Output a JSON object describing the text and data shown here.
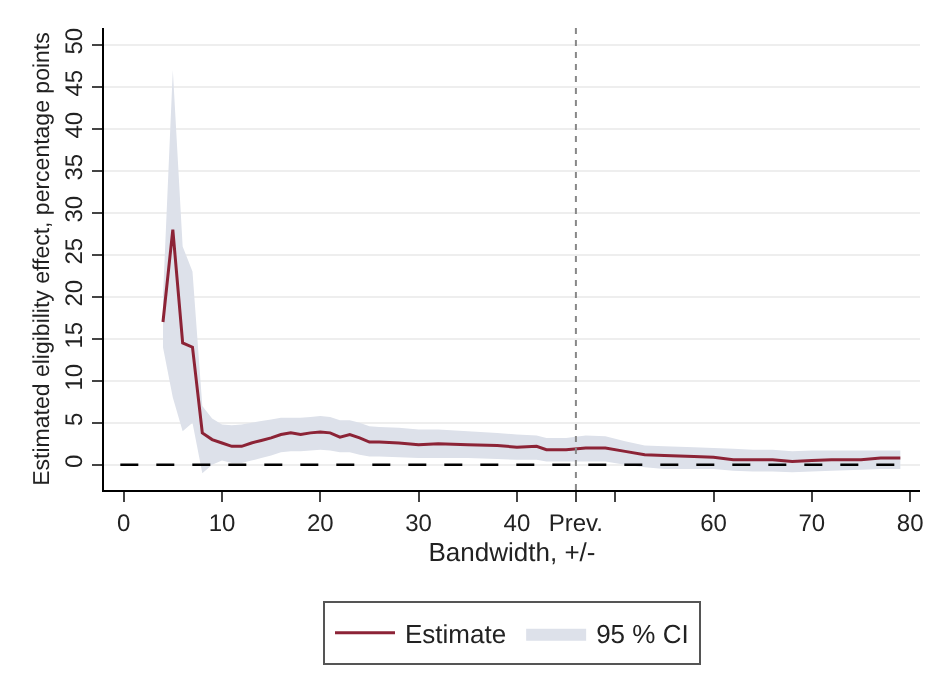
{
  "chart_data": {
    "type": "line",
    "xlabel": "Bandwidth, +/-",
    "ylabel": "Estimated eligibility effect, percentage points",
    "x": [
      4,
      5,
      6,
      7,
      8,
      9,
      10,
      11,
      12,
      13,
      14,
      15,
      16,
      17,
      18,
      19,
      20,
      21,
      22,
      23,
      24,
      25,
      26,
      28,
      30,
      32,
      35,
      38,
      40,
      42,
      43,
      45,
      47,
      49,
      51,
      53,
      55,
      58,
      60,
      62,
      64,
      66,
      68,
      70,
      72,
      75,
      77,
      79
    ],
    "series": [
      {
        "name": "Estimate",
        "color": "#8c2336",
        "values": [
          17,
          28,
          14.5,
          14,
          3.8,
          3,
          2.6,
          2.2,
          2.2,
          2.6,
          2.9,
          3.2,
          3.6,
          3.8,
          3.6,
          3.8,
          3.9,
          3.8,
          3.3,
          3.6,
          3.2,
          2.7,
          2.7,
          2.6,
          2.4,
          2.5,
          2.4,
          2.3,
          2.1,
          2.2,
          1.8,
          1.8,
          2.0,
          2.0,
          1.6,
          1.2,
          1.1,
          1.0,
          0.9,
          0.6,
          0.6,
          0.6,
          0.4,
          0.5,
          0.6,
          0.6,
          0.8,
          0.8
        ]
      },
      {
        "name": "95 % CI",
        "type": "area",
        "color": "#dde1ea",
        "values": [
          null,
          null,
          null,
          null,
          null,
          null,
          null,
          null,
          null,
          null,
          null,
          null,
          null,
          null,
          null,
          null,
          null,
          null,
          null,
          null,
          null,
          null,
          null,
          null,
          null,
          null,
          null,
          null,
          null,
          null,
          null,
          null,
          null,
          null,
          null,
          null,
          null,
          null,
          null,
          null,
          null,
          null,
          null,
          null,
          null,
          null,
          null,
          null
        ],
        "upper": [
          20,
          47,
          26,
          23,
          7,
          5.5,
          4.8,
          4.7,
          4.8,
          5,
          5.2,
          5.4,
          5.6,
          5.6,
          5.6,
          5.7,
          5.8,
          5.7,
          5.3,
          5.3,
          5,
          4.6,
          4.5,
          4.4,
          4.2,
          4.2,
          4,
          3.8,
          3.6,
          3.5,
          3.2,
          3.2,
          3.5,
          3.4,
          2.8,
          2.3,
          2.2,
          2.1,
          2,
          1.9,
          1.8,
          1.8,
          1.6,
          1.7,
          1.7,
          1.7,
          1.7,
          1.7
        ],
        "lower": [
          14,
          8,
          4,
          5,
          -1,
          0,
          0.5,
          0.2,
          0.2,
          0.5,
          0.8,
          1.1,
          1.5,
          1.6,
          1.6,
          1.7,
          1.8,
          1.7,
          1.5,
          1.5,
          1.2,
          1.0,
          1.0,
          0.9,
          0.8,
          0.8,
          0.8,
          0.7,
          0.6,
          0.6,
          0.4,
          0.4,
          0.4,
          0.4,
          0,
          -0.3,
          -0.5,
          -0.5,
          -0.5,
          -0.7,
          -0.8,
          -0.8,
          -0.9,
          -0.8,
          -0.7,
          -0.6,
          -0.5,
          -0.5
        ]
      }
    ],
    "xlim": [
      -2,
      81
    ],
    "xticks": [
      0,
      10,
      20,
      30,
      40,
      {
        "value": 46,
        "label": "Prev."
      },
      {
        "value": 50,
        "label": null
      },
      60,
      70,
      80
    ],
    "ylim": [
      -3,
      52
    ],
    "yticks": [
      0,
      5,
      10,
      15,
      20,
      25,
      30,
      35,
      40,
      45,
      50
    ],
    "ref_lines": [
      {
        "axis": "y",
        "value": 0,
        "color": "#000000",
        "line_style": "dashed"
      },
      {
        "axis": "x",
        "value": 46,
        "color": "#888888",
        "line_style": "dotted"
      }
    ],
    "grid": "y",
    "legend": "bottom"
  }
}
